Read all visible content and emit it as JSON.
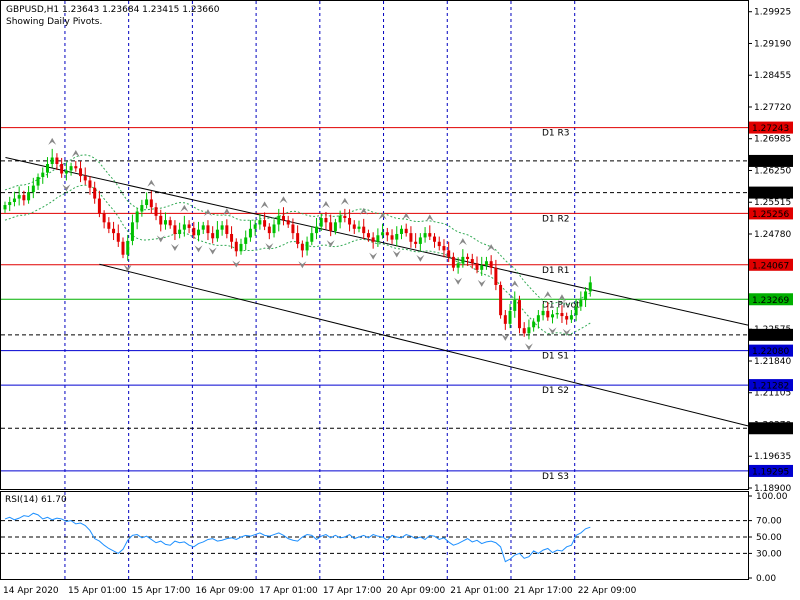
{
  "header": {
    "title": "GBPUSD,H1  1.23643 1.23684 1.23415 1.23660",
    "subtitle": "Showing Daily Pivots."
  },
  "rsi": {
    "title": "RSI(14) 61.70"
  },
  "chart_data": [
    {
      "type": "candlestick",
      "symbol": "GBPUSD",
      "timeframe": "H1",
      "ohlc_last": {
        "open": 1.23643,
        "high": 1.23684,
        "low": 1.23415,
        "close": 1.2366
      },
      "ylim": [
        1.189,
        1.3015
      ],
      "price_ticks": [
        "1.29925",
        "1.29190",
        "1.28455",
        "1.27720",
        "1.26985",
        "1.26250",
        "1.25515",
        "1.24780",
        "1.24045",
        "1.23275",
        "1.22575",
        "1.21840",
        "1.21105",
        "1.20370",
        "1.19635",
        "1.18900"
      ],
      "x_ticks": [
        "14 Apr 2020",
        "15 Apr 01:00",
        "15 Apr 17:00",
        "16 Apr 09:00",
        "17 Apr 01:00",
        "17 Apr 17:00",
        "20 Apr 09:00",
        "21 Apr 01:00",
        "21 Apr 17:00",
        "22 Apr 09:00"
      ],
      "pivot_levels": [
        {
          "name": "D1 R3",
          "value": 1.27243,
          "color": "#e00000",
          "label": "1.27243"
        },
        {
          "name": "D1 R2",
          "value": 1.25256,
          "color": "#e00000",
          "label": "1.25256"
        },
        {
          "name": "D1 R1",
          "value": 1.24067,
          "color": "#e00000",
          "label": "1.24067"
        },
        {
          "name": "D1 Pivot",
          "value": 1.23269,
          "color": "#00b000",
          "label": "1.23269"
        },
        {
          "name": "D1 S1",
          "value": 1.2208,
          "color": "#0000d0",
          "label": "1.22080"
        },
        {
          "name": "D1 S2",
          "value": 1.21282,
          "color": "#0000d0",
          "label": "1.21282"
        },
        {
          "name": "D1 S3",
          "value": 1.19295,
          "color": "#0000d0",
          "label": "1.19295"
        }
      ],
      "dashed_levels": [
        {
          "value": 1.26471,
          "label": "1.26471"
        },
        {
          "value": 1.25738,
          "label": "1.25738"
        },
        {
          "value": 1.22445,
          "label": "1.22445"
        },
        {
          "value": 1.20283,
          "label": "1.20283"
        }
      ],
      "channel": [
        {
          "name": "upper",
          "x": [
            0.1,
            125
          ],
          "y": [
            1.2655,
            1.2347
          ]
        },
        {
          "name": "lower",
          "x": [
            20,
            125
          ],
          "y": [
            1.2408,
            1.2122
          ]
        }
      ],
      "candle_closes": [
        1.2545,
        1.2552,
        1.256,
        1.2568,
        1.2556,
        1.2575,
        1.259,
        1.261,
        1.262,
        1.264,
        1.2655,
        1.264,
        1.2618,
        1.2625,
        1.2635,
        1.263,
        1.2612,
        1.2602,
        1.2585,
        1.256,
        1.2525,
        1.2505,
        1.249,
        1.248,
        1.246,
        1.243,
        1.2462,
        1.2505,
        1.253,
        1.2545,
        1.2558,
        1.254,
        1.252,
        1.25,
        1.251,
        1.2498,
        1.2478,
        1.2488,
        1.25,
        1.2492,
        1.2475,
        1.2488,
        1.2498,
        1.248,
        1.2468,
        1.2488,
        1.2498,
        1.2478,
        1.246,
        1.2438,
        1.2455,
        1.247,
        1.249,
        1.25,
        1.251,
        1.2495,
        1.248,
        1.25,
        1.252,
        1.251,
        1.25,
        1.248,
        1.2455,
        1.244,
        1.246,
        1.248,
        1.2495,
        1.2515,
        1.2505,
        1.2485,
        1.2505,
        1.252,
        1.2515,
        1.25,
        1.249,
        1.2495,
        1.248,
        1.247,
        1.246,
        1.2475,
        1.2482,
        1.2475,
        1.2465,
        1.2478,
        1.249,
        1.248,
        1.246,
        1.2455,
        1.247,
        1.248,
        1.2472,
        1.246,
        1.245,
        1.244,
        1.2425,
        1.24,
        1.241,
        1.2425,
        1.242,
        1.241,
        1.2395,
        1.2405,
        1.2415,
        1.24,
        1.236,
        1.229,
        1.227,
        1.23,
        1.2325,
        1.226,
        1.2248,
        1.2262,
        1.2275,
        1.229,
        1.23,
        1.2285,
        1.2292,
        1.2295,
        1.2288,
        1.228,
        1.229,
        1.231,
        1.2325,
        1.2345,
        1.2366
      ],
      "rsi": {
        "ylim": [
          0,
          100
        ],
        "ticks": [
          "100.00",
          "70.00",
          "50.00",
          "30.00",
          "0.00"
        ],
        "levels": [
          70,
          50,
          30
        ],
        "values": [
          72,
          74,
          71,
          73,
          76,
          75,
          79,
          77,
          72,
          74,
          71,
          73,
          72,
          69,
          70,
          66,
          67,
          64,
          58,
          48,
          45,
          40,
          36,
          33,
          30,
          35,
          46,
          52,
          53,
          49,
          51,
          47,
          43,
          45,
          41,
          40,
          45,
          43,
          44,
          40,
          38,
          42,
          44,
          47,
          48,
          45,
          46,
          48,
          49,
          47,
          50,
          52,
          51,
          53,
          55,
          52,
          51,
          53,
          55,
          52,
          48,
          46,
          45,
          50,
          53,
          52,
          47,
          51,
          53,
          49,
          52,
          49,
          50,
          53,
          48,
          50,
          52,
          49,
          53,
          51,
          50,
          46,
          52,
          50,
          49,
          53,
          51,
          48,
          50,
          47,
          52,
          51,
          47,
          49,
          44,
          40,
          42,
          45,
          48,
          44,
          46,
          42,
          44,
          45,
          43,
          38,
          20,
          23,
          28,
          30,
          24,
          26,
          33,
          30,
          34,
          36,
          31,
          34,
          33,
          38,
          40,
          52,
          55,
          60,
          62
        ]
      }
    }
  ]
}
